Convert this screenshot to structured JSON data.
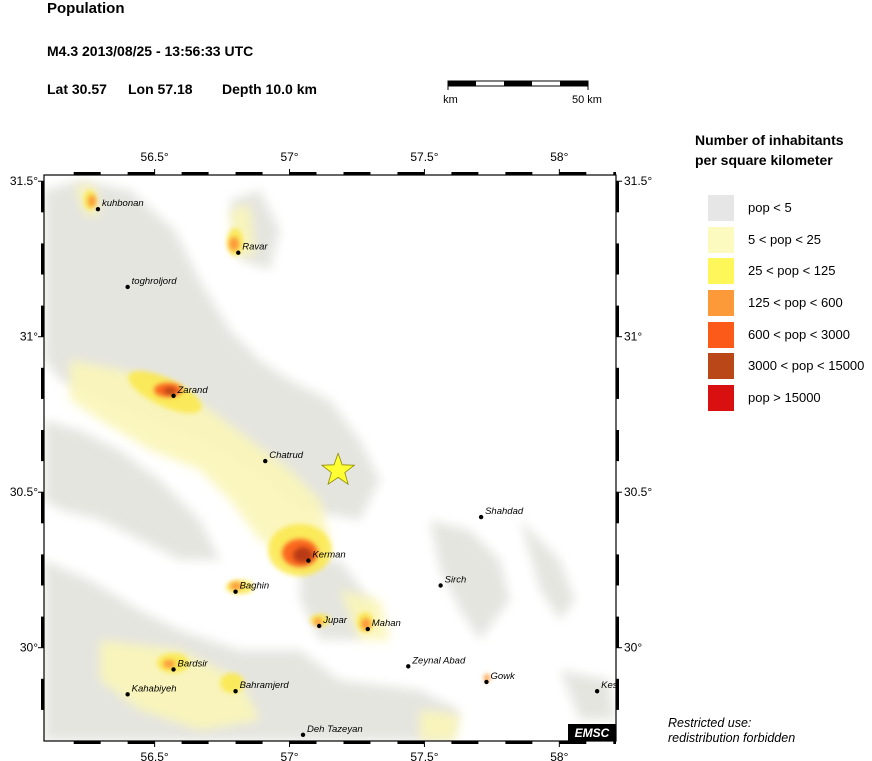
{
  "title": "Population",
  "event": {
    "line": "M4.3  2013/08/25 - 13:56:33 UTC",
    "lat_label": "Lat 30.57",
    "lon_label": "Lon  57.18",
    "depth_label": "Depth  10.0 km",
    "lat": 30.57,
    "lon": 57.18
  },
  "scale": {
    "left_label": "0 km",
    "right_label": "50 km"
  },
  "map": {
    "lon_ticks": [
      {
        "value": 56.5,
        "label": "56.5°"
      },
      {
        "value": 57,
        "label": "57°"
      },
      {
        "value": 57.5,
        "label": "57.5°"
      },
      {
        "value": 58,
        "label": "58°"
      }
    ],
    "lat_ticks": [
      {
        "value": 31.5,
        "label": "31.5°"
      },
      {
        "value": 31,
        "label": "31°"
      },
      {
        "value": 30.5,
        "label": "30.5°"
      },
      {
        "value": 30,
        "label": "30°"
      }
    ],
    "bounds": {
      "lon_min": 56.09,
      "lon_max": 58.21,
      "lat_min": 29.7,
      "lat_max": 31.52
    },
    "epicenter_color": "#ffff33",
    "cities": [
      {
        "name": "kuhbonan",
        "lon": 56.29,
        "lat": 31.41
      },
      {
        "name": "Ravar",
        "lon": 56.81,
        "lat": 31.27
      },
      {
        "name": "toghroljord",
        "lon": 56.4,
        "lat": 31.16
      },
      {
        "name": "Zarand",
        "lon": 56.57,
        "lat": 30.81
      },
      {
        "name": "Chatrud",
        "lon": 56.91,
        "lat": 30.6
      },
      {
        "name": "Shahdad",
        "lon": 57.71,
        "lat": 30.42
      },
      {
        "name": "Kerman",
        "lon": 57.07,
        "lat": 30.28
      },
      {
        "name": "Sirch",
        "lon": 57.56,
        "lat": 30.2
      },
      {
        "name": "Baghin",
        "lon": 56.8,
        "lat": 30.18
      },
      {
        "name": "Jupar",
        "lon": 57.11,
        "lat": 30.07
      },
      {
        "name": "Mahan",
        "lon": 57.29,
        "lat": 30.06
      },
      {
        "name": "Bardsir",
        "lon": 56.57,
        "lat": 29.93
      },
      {
        "name": "Zeynal Abad",
        "lon": 57.44,
        "lat": 29.94
      },
      {
        "name": "Gowk",
        "lon": 57.73,
        "lat": 29.89
      },
      {
        "name": "Kes",
        "lon": 58.14,
        "lat": 29.86
      },
      {
        "name": "Kahabiyeh",
        "lon": 56.4,
        "lat": 29.85
      },
      {
        "name": "Bahramjerd",
        "lon": 56.8,
        "lat": 29.86
      },
      {
        "name": "Deh Tazeyan",
        "lon": 57.05,
        "lat": 29.72
      }
    ],
    "credit": "EMSC"
  },
  "legend": {
    "title_line1": "Number of inhabitants",
    "title_line2": "per square kilometer",
    "items": [
      {
        "label": "pop < 5",
        "color": "#e6e6e6"
      },
      {
        "label": "5 < pop < 25",
        "color": "#fdfac0"
      },
      {
        "label": "25 < pop < 125",
        "color": "#fdf75a"
      },
      {
        "label": "125 < pop < 600",
        "color": "#fc9a3a"
      },
      {
        "label": "600 < pop < 3000",
        "color": "#fb5a18"
      },
      {
        "label": "3000 < pop < 15000",
        "color": "#b94718"
      },
      {
        "label": "pop > 15000",
        "color": "#d81010"
      }
    ]
  },
  "note": {
    "line1": "Restricted use:",
    "line2": "redistribution forbidden"
  }
}
